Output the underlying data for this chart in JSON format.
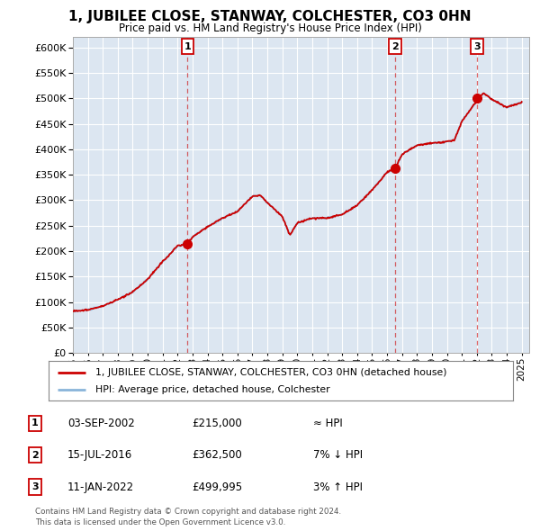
{
  "title": "1, JUBILEE CLOSE, STANWAY, COLCHESTER, CO3 0HN",
  "subtitle": "Price paid vs. HM Land Registry's House Price Index (HPI)",
  "ylim": [
    0,
    620000
  ],
  "yticks": [
    0,
    50000,
    100000,
    150000,
    200000,
    250000,
    300000,
    350000,
    400000,
    450000,
    500000,
    550000,
    600000
  ],
  "bg_color": "#dce6f1",
  "line_color_red": "#cc0000",
  "line_color_blue": "#89b4d9",
  "sales": [
    {
      "date_num": 2002.67,
      "price": 215000,
      "label": "1"
    },
    {
      "date_num": 2016.54,
      "price": 362500,
      "label": "2"
    },
    {
      "date_num": 2022.03,
      "price": 499995,
      "label": "3"
    }
  ],
  "table_rows": [
    {
      "num": "1",
      "date": "03-SEP-2002",
      "price": "£215,000",
      "note": "≈ HPI"
    },
    {
      "num": "2",
      "date": "15-JUL-2016",
      "price": "£362,500",
      "note": "7% ↓ HPI"
    },
    {
      "num": "3",
      "date": "11-JAN-2022",
      "price": "£499,995",
      "note": "3% ↑ HPI"
    }
  ],
  "legend_entries": [
    "1, JUBILEE CLOSE, STANWAY, COLCHESTER, CO3 0HN (detached house)",
    "HPI: Average price, detached house, Colchester"
  ],
  "footer": "Contains HM Land Registry data © Crown copyright and database right 2024.\nThis data is licensed under the Open Government Licence v3.0.",
  "xmin": 1995,
  "xmax": 2025.5
}
